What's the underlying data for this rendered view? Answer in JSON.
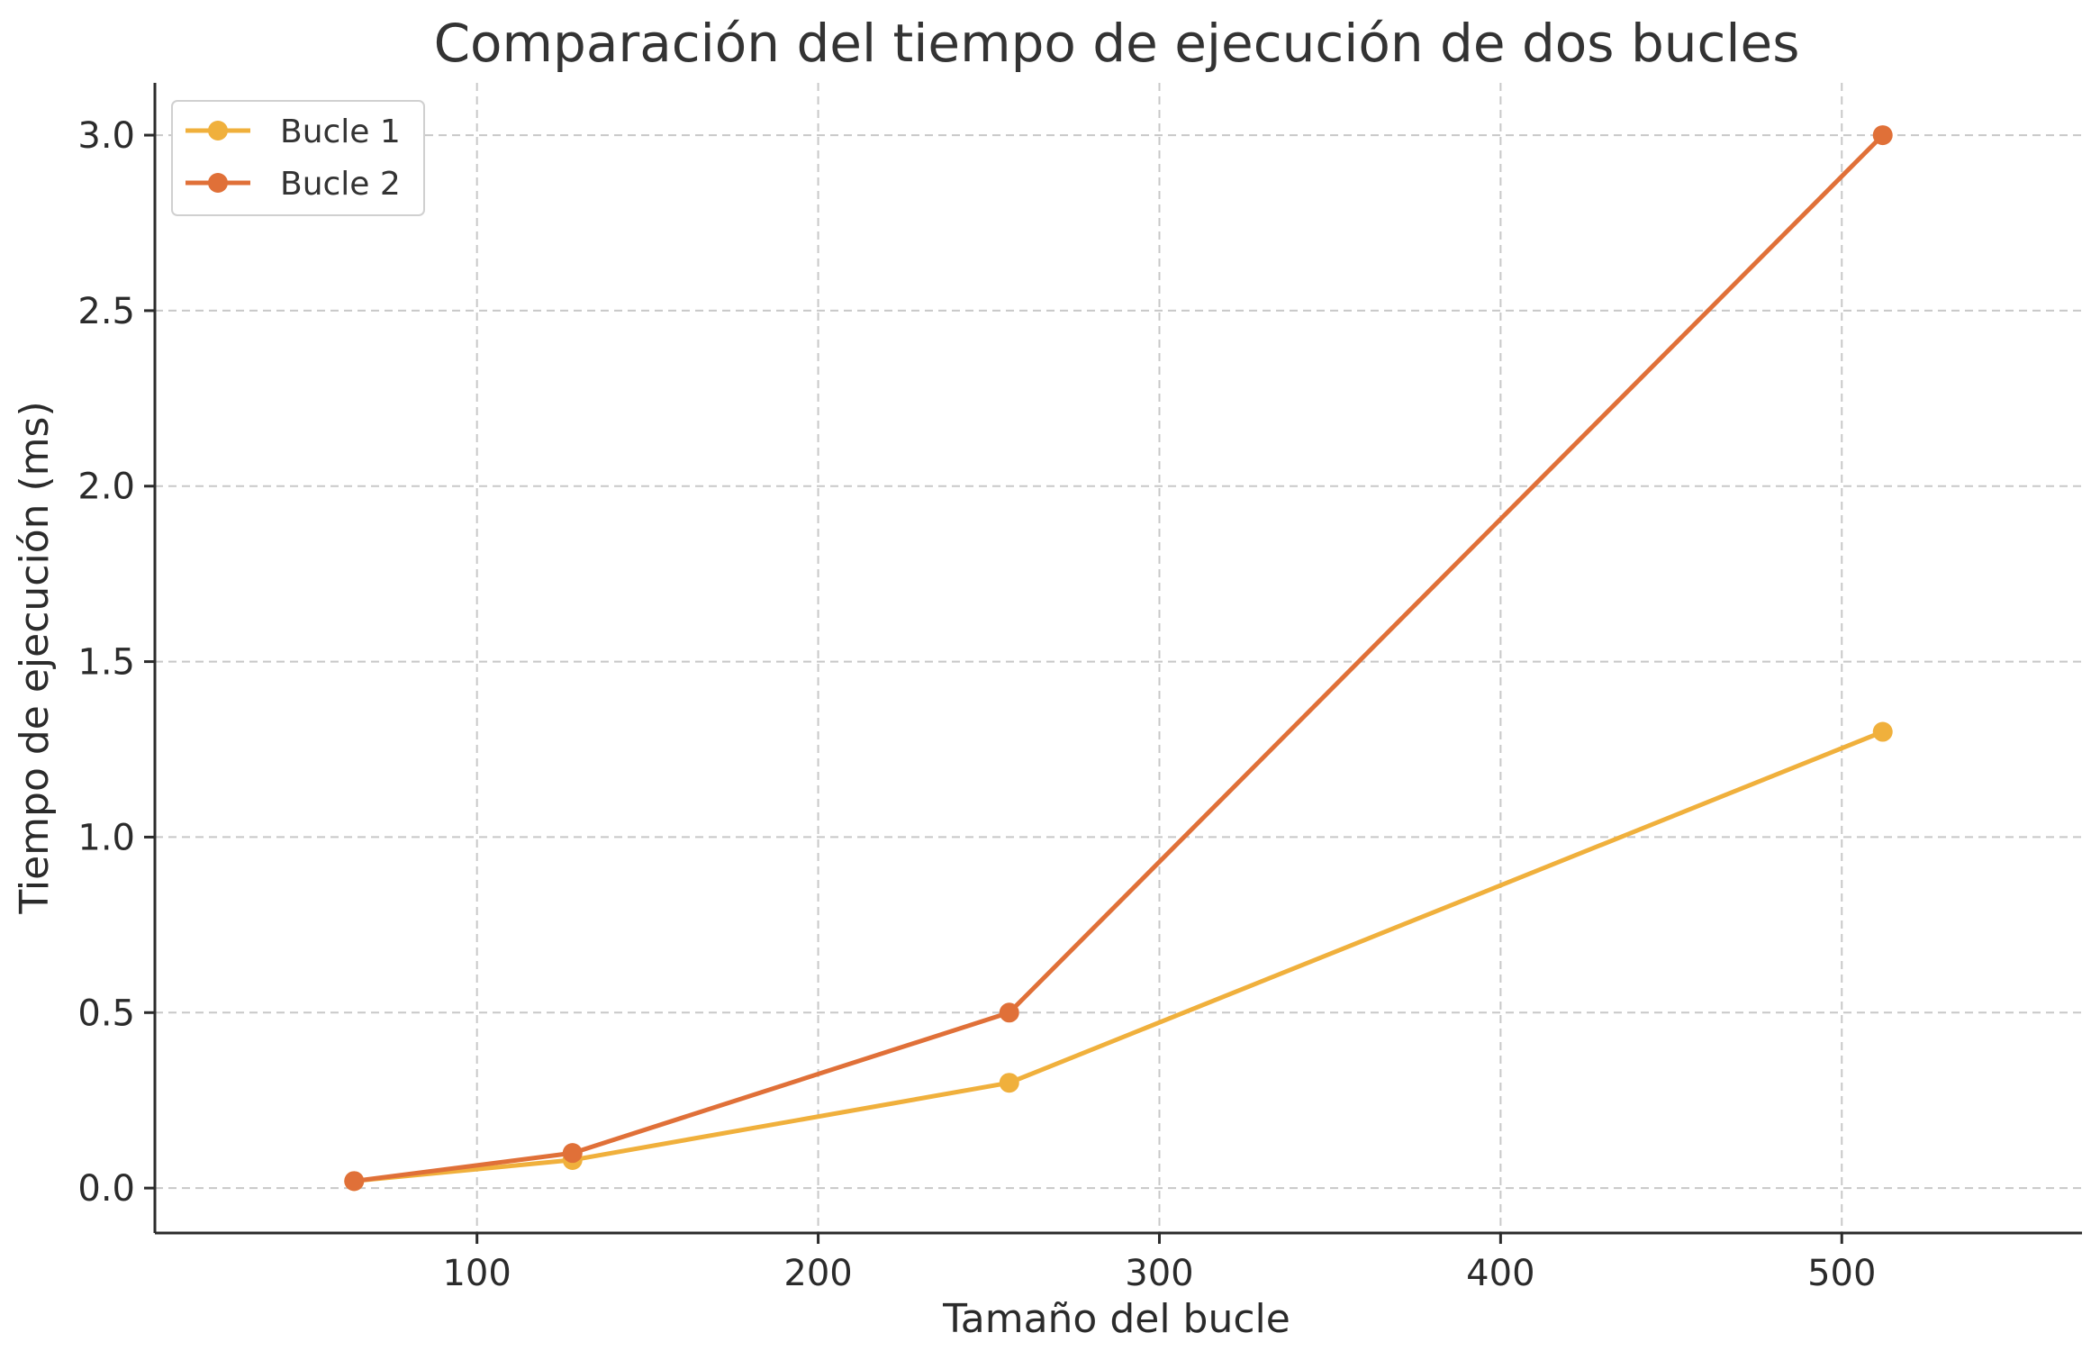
{
  "chart_data": {
    "type": "line",
    "title": "Comparación del tiempo de ejecución de dos bucles",
    "xlabel": "Tamaño del bucle",
    "ylabel": "Tiempo de ejecución (ms)",
    "x": [
      64,
      128,
      256,
      512
    ],
    "xlim": [
      5.6,
      570.4
    ],
    "ylim": [
      -0.128,
      3.149
    ],
    "xticks": [
      100,
      200,
      300,
      400,
      500
    ],
    "xtick_labels": [
      "100",
      "200",
      "300",
      "400",
      "500"
    ],
    "yticks": [
      0.0,
      0.5,
      1.0,
      1.5,
      2.0,
      2.5,
      3.0
    ],
    "ytick_labels": [
      "0.0",
      "0.5",
      "1.0",
      "1.5",
      "2.0",
      "2.5",
      "3.0"
    ],
    "grid": true,
    "legend_position": "top-left",
    "series": [
      {
        "name": "Bucle 1",
        "color": "#f0b03c",
        "marker": "circle",
        "values": [
          0.02,
          0.08,
          0.3,
          1.3
        ]
      },
      {
        "name": "Bucle 2",
        "color": "#e07038",
        "marker": "circle",
        "values": [
          0.02,
          0.1,
          0.5,
          3.0
        ]
      }
    ]
  }
}
